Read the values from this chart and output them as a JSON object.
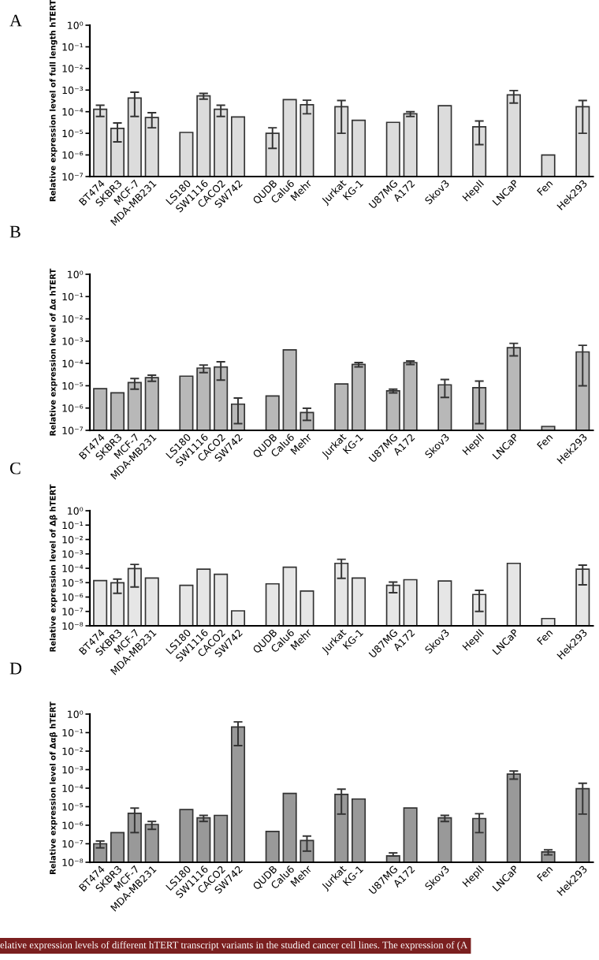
{
  "chart_data": [
    {
      "type": "bar",
      "title": "A",
      "ylabel": "Relative expression level of full length hTERT",
      "color": "#dcdcdc",
      "categories": [
        "BT474",
        "SKBR3",
        "MCF-7",
        "MDA-MB231",
        null,
        "LS180",
        "SW1116",
        "CACO2",
        "SW742",
        null,
        "QUDB",
        "Calu6",
        "Mehr",
        null,
        "Jurkat",
        "KG-1",
        null,
        "U87MG",
        "A172",
        null,
        "Skov3",
        null,
        "HepII",
        null,
        "LNCaP",
        null,
        "Fen",
        null,
        "Hek293"
      ],
      "values": [
        0.00013,
        1.7e-05,
        0.00043,
        5.4e-05,
        null,
        1.1e-05,
        0.00054,
        0.00013,
        5.7e-05,
        null,
        1e-05,
        0.00036,
        0.00021,
        null,
        0.00017,
        4e-05,
        null,
        3.2e-05,
        8e-05,
        null,
        0.00019,
        null,
        2e-05,
        null,
        0.0006,
        null,
        1e-06,
        null,
        0.00017
      ],
      "errors": [
        7e-05,
        1.3e-05,
        0.00037,
        3.6e-05,
        null,
        null,
        0.00016,
        7e-05,
        null,
        null,
        8e-06,
        null,
        0.00013,
        null,
        0.00016,
        null,
        null,
        null,
        2e-05,
        null,
        null,
        null,
        1.7e-05,
        null,
        0.00035,
        null,
        null,
        null,
        0.00016
      ],
      "log": "y",
      "ylim": [
        1e-07,
        1
      ],
      "yticks": [
        {
          "value": 1,
          "label": "10⁰"
        },
        {
          "value": 0.1,
          "label": "10⁻¹"
        },
        {
          "value": 0.01,
          "label": "10⁻²"
        },
        {
          "value": 0.001,
          "label": "10⁻³"
        },
        {
          "value": 0.0001,
          "label": "10⁻⁴"
        },
        {
          "value": 1e-05,
          "label": "10⁻⁵"
        },
        {
          "value": 1e-06,
          "label": "10⁻⁶"
        },
        {
          "value": 1e-07,
          "label": "10⁻⁷"
        }
      ],
      "grid": false,
      "legend": false
    },
    {
      "type": "bar",
      "title": "B",
      "ylabel": "Relative expression level of Δα hTERT",
      "color": "#b8b8b8",
      "categories": [
        "BT474",
        "SKBR3",
        "MCF-7",
        "MDA-MB231",
        null,
        "LS180",
        "SW1116",
        "CACO2",
        "SW742",
        null,
        "QUDB",
        "Calu6",
        "Mehr",
        null,
        "Jurkat",
        "KG-1",
        null,
        "U87MG",
        "A172",
        null,
        "Skov3",
        null,
        "HepII",
        null,
        "LNCaP",
        null,
        "Fen",
        null,
        "Hek293"
      ],
      "values": [
        7.4e-06,
        4.8e-06,
        1.4e-05,
        2.3e-05,
        null,
        2.7e-05,
        6.2e-05,
        6.9e-05,
        1.5e-06,
        null,
        3.5e-06,
        0.00041,
        6.3e-07,
        null,
        1.2e-05,
        9e-05,
        null,
        5.9e-06,
        0.00011,
        null,
        1.1e-05,
        null,
        8.2e-06,
        null,
        0.00051,
        null,
        1.5e-07,
        null,
        0.00033
      ],
      "errors": [
        null,
        null,
        7e-06,
        7e-06,
        null,
        null,
        2.3e-05,
        5.1e-05,
        1.3e-06,
        null,
        null,
        null,
        3.5e-07,
        null,
        null,
        2e-05,
        null,
        1.1e-06,
        2e-05,
        null,
        8e-06,
        null,
        8e-06,
        null,
        0.00029,
        null,
        null,
        null,
        0.00032
      ],
      "log": "y",
      "ylim": [
        1e-07,
        1
      ],
      "yticks": [
        {
          "value": 1,
          "label": "10⁰"
        },
        {
          "value": 0.1,
          "label": "10⁻¹"
        },
        {
          "value": 0.01,
          "label": "10⁻²"
        },
        {
          "value": 0.001,
          "label": "10⁻³"
        },
        {
          "value": 0.0001,
          "label": "10⁻⁴"
        },
        {
          "value": 1e-05,
          "label": "10⁻⁵"
        },
        {
          "value": 1e-06,
          "label": "10⁻⁶"
        },
        {
          "value": 1e-07,
          "label": "10⁻⁷"
        }
      ],
      "grid": false,
      "legend": false
    },
    {
      "type": "bar",
      "title": "C",
      "ylabel": "Relative expression level of Δβ hTERT",
      "color": "#e6e6e6",
      "categories": [
        "BT474",
        "SKBR3",
        "MCF-7",
        "MDA-MB231",
        null,
        "LS180",
        "SW1116",
        "CACO2",
        "SW742",
        null,
        "QUDB",
        "Calu6",
        "Mehr",
        null,
        "Jurkat",
        "KG-1",
        null,
        "U87MG",
        "A172",
        null,
        "Skov3",
        null,
        "HepII",
        null,
        "LNCaP",
        null,
        "Fen",
        null,
        "Hek293"
      ],
      "values": [
        1.4e-05,
        9.8e-06,
        9.5e-05,
        2.1e-05,
        null,
        6.5e-06,
        8.7e-05,
        3.8e-05,
        1.1e-07,
        null,
        8.3e-06,
        0.00012,
        2.6e-06,
        null,
        0.00022,
        2.1e-05,
        null,
        6.5e-06,
        1.6e-05,
        null,
        1.3e-05,
        null,
        1.5e-06,
        null,
        0.00022,
        null,
        3.2e-08,
        null,
        8.7e-05
      ],
      "errors": [
        null,
        8e-06,
        9e-05,
        null,
        null,
        null,
        null,
        null,
        null,
        null,
        null,
        null,
        null,
        null,
        0.0002,
        null,
        null,
        4.5e-06,
        null,
        null,
        null,
        null,
        1.4e-06,
        null,
        null,
        null,
        null,
        null,
        8e-05
      ],
      "log": "y",
      "ylim": [
        1e-08,
        1
      ],
      "yticks": [
        {
          "value": 1,
          "label": "10⁰"
        },
        {
          "value": 0.1,
          "label": "10⁻¹"
        },
        {
          "value": 0.01,
          "label": "10⁻²"
        },
        {
          "value": 0.001,
          "label": "10⁻³"
        },
        {
          "value": 0.0001,
          "label": "10⁻⁴"
        },
        {
          "value": 1e-05,
          "label": "10⁻⁵"
        },
        {
          "value": 1e-06,
          "label": "10⁻⁶"
        },
        {
          "value": 1e-07,
          "label": "10⁻⁷"
        },
        {
          "value": 1e-08,
          "label": "10⁻⁸"
        }
      ],
      "grid": false
    },
    {
      "type": "bar",
      "title": "D",
      "ylabel": "Relative expression level of Δαβ hTERT",
      "color": "#999999",
      "categories": [
        "BT474",
        "SKBR3",
        "MCF-7",
        "MDA-MB231",
        null,
        "LS180",
        "SW1116",
        "CACO2",
        "SW742",
        null,
        "QUDB",
        "Calu6",
        "Mehr",
        null,
        "Jurkat",
        "KG-1",
        null,
        "U87MG",
        "A172",
        null,
        "Skov3",
        null,
        "HepII",
        null,
        "LNCaP",
        null,
        "Fen",
        null,
        "Hek293"
      ],
      "values": [
        1e-07,
        4e-07,
        4.4e-06,
        1.1e-06,
        null,
        7e-06,
        2.5e-06,
        3.4e-06,
        0.2,
        null,
        4.6e-07,
        5.2e-05,
        1.5e-07,
        null,
        4.6e-05,
        2.6e-05,
        null,
        2.2e-08,
        8.5e-06,
        null,
        2.5e-06,
        null,
        2.3e-06,
        null,
        0.00058,
        null,
        3.6e-08,
        null,
        9.4e-05
      ],
      "errors": [
        4e-08,
        null,
        4e-06,
        5e-07,
        null,
        null,
        9e-07,
        null,
        0.18,
        null,
        null,
        null,
        1.1e-07,
        null,
        4.2e-05,
        null,
        null,
        [
          2.2e-08,
          3.2e-08
        ],
        null,
        null,
        9e-07,
        null,
        1.9e-06,
        null,
        0.00027,
        null,
        1.1e-08,
        null,
        9e-05
      ],
      "log": "y",
      "ylim": [
        1e-08,
        1
      ],
      "yticks": [
        {
          "value": 1,
          "label": "10⁰"
        },
        {
          "value": 0.1,
          "label": "10⁻¹"
        },
        {
          "value": 0.01,
          "label": "10⁻²"
        },
        {
          "value": 0.001,
          "label": "10⁻³"
        },
        {
          "value": 0.0001,
          "label": "10⁻⁴"
        },
        {
          "value": 1e-05,
          "label": "10⁻⁵"
        },
        {
          "value": 1e-06,
          "label": "10⁻⁶"
        },
        {
          "value": 1e-07,
          "label": "10⁻⁷"
        },
        {
          "value": 1e-08,
          "label": "10⁻⁸"
        }
      ],
      "grid": false,
      "annotations": [
        "elative expression levels of different hTERT transcript variants in the studied cancer cell lines. The expression of (A"
      ]
    }
  ]
}
